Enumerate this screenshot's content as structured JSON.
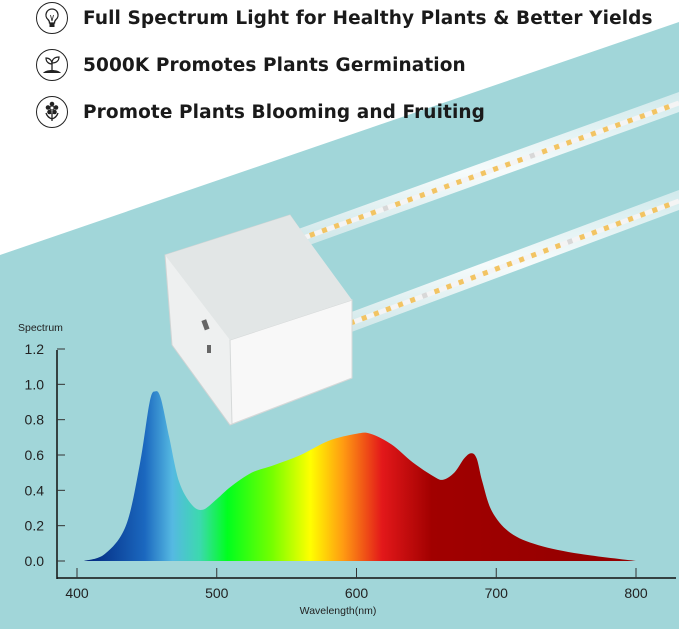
{
  "features": [
    {
      "icon": "light-bulb-icon",
      "text": "Full Spectrum Light for Healthy Plants & Better Yields"
    },
    {
      "icon": "sprout-icon",
      "text": "5000K Promotes Plants Germination"
    },
    {
      "icon": "flower-icon",
      "text": "Promote Plants Blooming and Fruiting"
    }
  ],
  "colors": {
    "background": "#a1d6d9",
    "top": "#ffffff"
  },
  "chart_data": {
    "type": "area",
    "title": "",
    "ylabel": "Spectrum",
    "xlabel": "Wavelength(nm)",
    "xlim": [
      400,
      800
    ],
    "ylim": [
      0,
      1.2
    ],
    "x_ticks": [
      "400",
      "500",
      "600",
      "700",
      "800"
    ],
    "y_ticks": [
      "0.0",
      "0.2",
      "0.4",
      "0.6",
      "0.8",
      "1.0",
      "1.2"
    ],
    "grid": false,
    "fill": "visible-spectrum gradient (blue to deep red)",
    "x": [
      405,
      420,
      435,
      445,
      452,
      456,
      460,
      466,
      473,
      482,
      490,
      500,
      510,
      525,
      540,
      560,
      580,
      600,
      610,
      625,
      640,
      655,
      662,
      670,
      677,
      682,
      686,
      690,
      697,
      710,
      730,
      760,
      800
    ],
    "y": [
      0,
      0.04,
      0.2,
      0.55,
      0.9,
      0.96,
      0.92,
      0.7,
      0.45,
      0.32,
      0.29,
      0.35,
      0.42,
      0.5,
      0.54,
      0.6,
      0.68,
      0.72,
      0.72,
      0.66,
      0.56,
      0.48,
      0.46,
      0.5,
      0.58,
      0.61,
      0.58,
      0.45,
      0.28,
      0.16,
      0.09,
      0.04,
      0
    ]
  }
}
